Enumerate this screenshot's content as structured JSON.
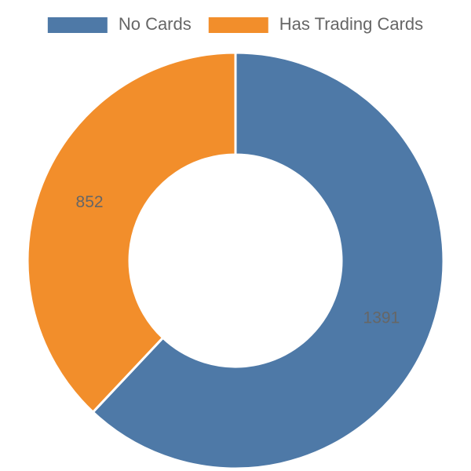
{
  "chart_data": {
    "type": "doughnut",
    "categories": [
      "No Cards",
      "Has Trading Cards"
    ],
    "values": [
      1391,
      852
    ],
    "colors": [
      "#4e79a7",
      "#f28e2b"
    ],
    "legend": "top"
  }
}
